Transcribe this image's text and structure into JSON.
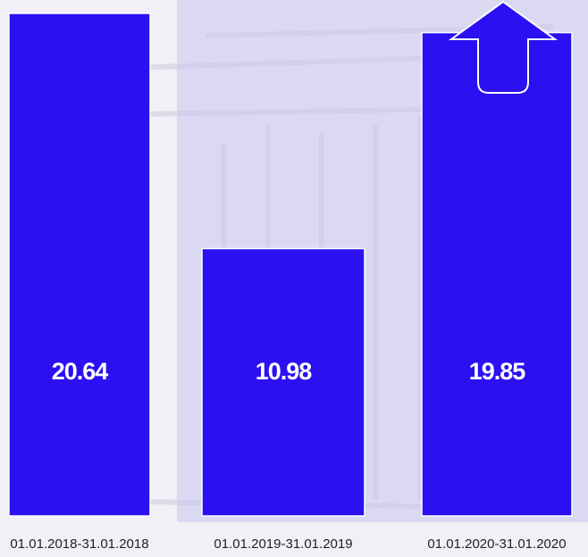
{
  "chart_data": {
    "type": "bar",
    "categories": [
      "01.01.2018-31.01.2018",
      "01.01.2019-31.01.2019",
      "01.01.2020-31.01.2020"
    ],
    "values": [
      20.64,
      10.98,
      19.85
    ],
    "color": "#2b10f2"
  }
}
